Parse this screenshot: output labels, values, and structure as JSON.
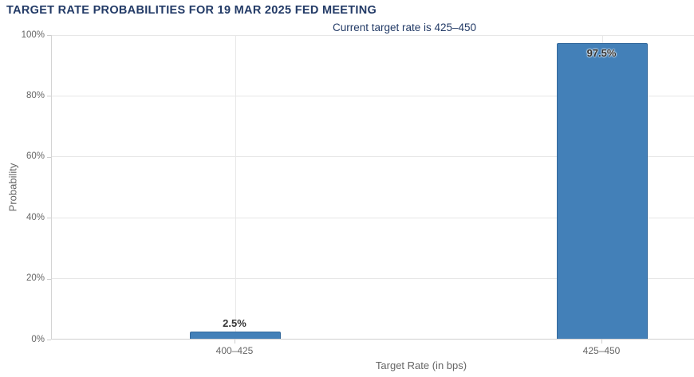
{
  "colors": {
    "background": "#ffffff",
    "title_text": "#223a66",
    "axis_text": "#666666",
    "value_label_text": "#333333",
    "bar_fill": "#4380b8",
    "bar_border": "#34699c",
    "gridline": "#e7e7e7",
    "axis_line": "#cfcfcf"
  },
  "chart_data": {
    "type": "bar",
    "title": "TARGET RATE PROBABILITIES FOR 19 MAR 2025 FED MEETING",
    "subtitle": "Current target rate is 425–450",
    "xlabel": "Target Rate (in bps)",
    "ylabel": "Probability",
    "categories": [
      "400–425",
      "425–450"
    ],
    "values": [
      2.5,
      97.5
    ],
    "value_labels": [
      "2.5%",
      "97.5%"
    ],
    "label_placement": [
      "above",
      "inside"
    ],
    "ylim": [
      0,
      100
    ],
    "ytick_step": 20,
    "ytick_labels": [
      "0%",
      "20%",
      "40%",
      "60%",
      "80%",
      "100%"
    ],
    "grid": true,
    "legend": "none",
    "bar_color": "#4380b8"
  }
}
